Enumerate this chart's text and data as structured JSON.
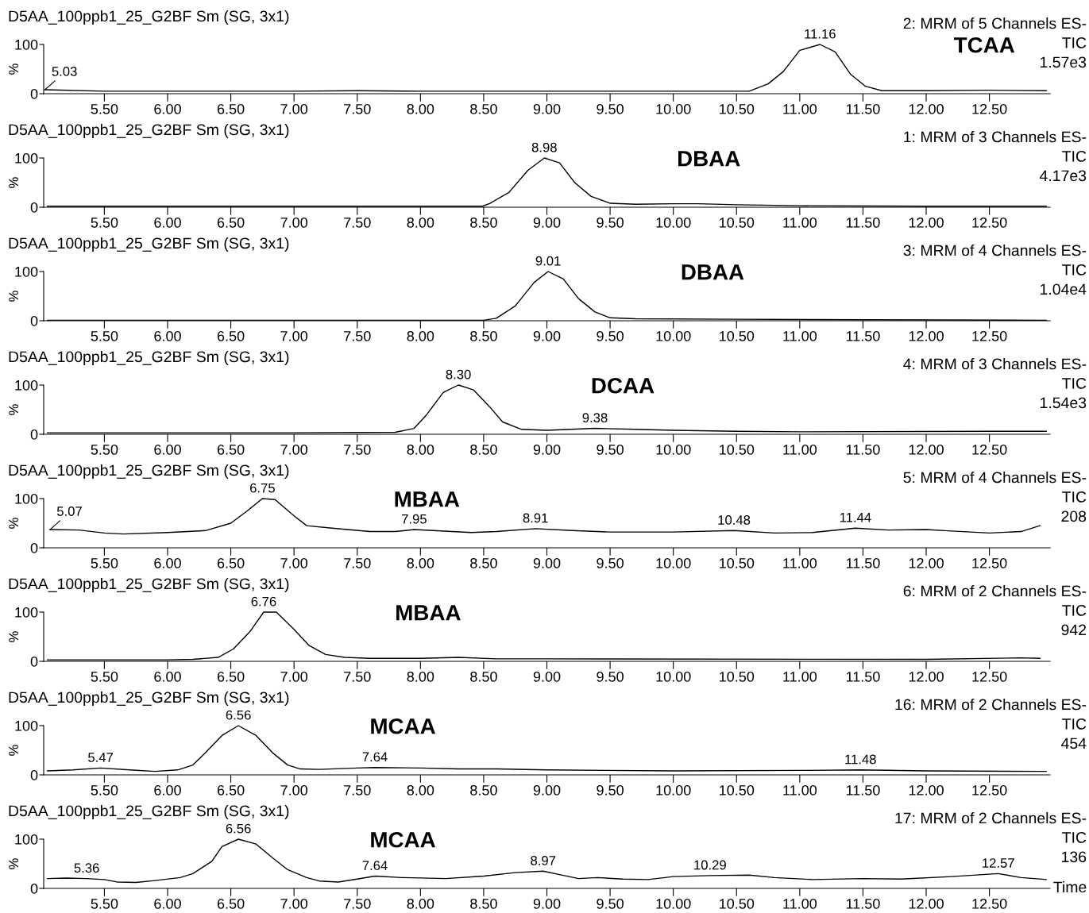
{
  "chart_data": [
    {
      "type": "line",
      "title": "D5AA_100ppb1_25_G2BF Sm (SG, 3x1)",
      "subtitle": "2: MRM of 5 Channels ES-\nTIC\n1.57e3",
      "ylabel": "%",
      "xlim": [
        5.02,
        12.98
      ],
      "ylim": [
        0,
        100
      ],
      "yticks": [
        0,
        100
      ],
      "xticks": [
        {
          "value": 5.5,
          "label": "5.50"
        },
        {
          "value": 6.0,
          "label": "6.00"
        },
        {
          "value": 6.5,
          "label": "6.50"
        },
        {
          "value": 7.0,
          "label": "7.00"
        },
        {
          "value": 7.5,
          "label": "7.50"
        },
        {
          "value": 8.0,
          "label": "8.00"
        },
        {
          "value": 8.5,
          "label": "8.50"
        },
        {
          "value": 9.0,
          "label": "9.00"
        },
        {
          "value": 9.5,
          "label": "9.50"
        },
        {
          "value": 10.0,
          "label": "10.00"
        },
        {
          "value": 10.5,
          "label": "10.50"
        },
        {
          "value": 11.0,
          "label": "11.00"
        },
        {
          "value": 11.5,
          "label": "11.50"
        },
        {
          "value": 12.0,
          "label": "12.00"
        },
        {
          "value": 12.5,
          "label": "12.50"
        }
      ],
      "annotations": [
        "TCAA",
        {
          "text": "11.16",
          "x": 11.16,
          "y": 100
        },
        {
          "text": "5.03",
          "x": 5.03,
          "y": 8
        }
      ],
      "series": [
        {
          "color": "#000000",
          "x": [
            5.03,
            5.5,
            6.0,
            7.0,
            7.5,
            8.0,
            9.0,
            10.0,
            10.6,
            10.75,
            10.87,
            11.0,
            11.16,
            11.28,
            11.4,
            11.52,
            11.65,
            12.0,
            12.5,
            12.95
          ],
          "values": [
            8,
            5,
            5,
            5,
            6,
            5,
            5,
            5,
            5,
            20,
            45,
            88,
            100,
            85,
            40,
            15,
            6,
            6,
            7,
            6
          ]
        }
      ]
    },
    {
      "type": "line",
      "title": "D5AA_100ppb1_25_G2BF Sm (SG, 3x1)",
      "subtitle": "1: MRM of 3 Channels ES-\nTIC\n4.17e3",
      "ylabel": "%",
      "xlim": [
        5.02,
        12.98
      ],
      "ylim": [
        0,
        100
      ],
      "yticks": [
        0,
        100
      ],
      "xticks": [
        {
          "value": 5.5,
          "label": "5.50"
        },
        {
          "value": 6.0,
          "label": "6.00"
        },
        {
          "value": 6.5,
          "label": "6.50"
        },
        {
          "value": 7.0,
          "label": "7.00"
        },
        {
          "value": 7.5,
          "label": "7.50"
        },
        {
          "value": 8.0,
          "label": "8.00"
        },
        {
          "value": 8.5,
          "label": "8.50"
        },
        {
          "value": 9.0,
          "label": "9.00"
        },
        {
          "value": 9.5,
          "label": "9.50"
        },
        {
          "value": 10.0,
          "label": "10.00"
        },
        {
          "value": 10.5,
          "label": "10.50"
        },
        {
          "value": 11.0,
          "label": "11.00"
        },
        {
          "value": 11.5,
          "label": "11.50"
        },
        {
          "value": 12.0,
          "label": "12.00"
        },
        {
          "value": 12.5,
          "label": "12.50"
        }
      ],
      "annotations": [
        "DBAA",
        {
          "text": "8.98",
          "x": 8.98,
          "y": 100
        }
      ],
      "series": [
        {
          "color": "#000000",
          "x": [
            5.05,
            6.0,
            7.0,
            8.0,
            8.49,
            8.55,
            8.7,
            8.85,
            8.98,
            9.1,
            9.22,
            9.35,
            9.5,
            9.7,
            10.0,
            10.2,
            10.5,
            11.0,
            12.0,
            12.95
          ],
          "values": [
            2,
            2,
            2,
            2,
            2,
            8,
            30,
            75,
            100,
            90,
            50,
            22,
            8,
            6,
            7,
            7,
            5,
            3,
            2,
            2
          ]
        }
      ]
    },
    {
      "type": "line",
      "title": "D5AA_100ppb1_25_G2BF Sm (SG, 3x1)",
      "subtitle": "3: MRM of 4 Channels ES-\nTIC\n1.04e4",
      "ylabel": "%",
      "xlim": [
        5.02,
        12.98
      ],
      "ylim": [
        0,
        100
      ],
      "yticks": [
        0,
        100
      ],
      "xticks": [
        {
          "value": 5.5,
          "label": "5.50"
        },
        {
          "value": 6.0,
          "label": "6.00"
        },
        {
          "value": 6.5,
          "label": "6.50"
        },
        {
          "value": 7.0,
          "label": "7.00"
        },
        {
          "value": 7.5,
          "label": "7.50"
        },
        {
          "value": 8.0,
          "label": "8.00"
        },
        {
          "value": 8.5,
          "label": "8.50"
        },
        {
          "value": 9.0,
          "label": "9.00"
        },
        {
          "value": 9.5,
          "label": "9.50"
        },
        {
          "value": 10.0,
          "label": "10.00"
        },
        {
          "value": 10.5,
          "label": "10.50"
        },
        {
          "value": 11.0,
          "label": "11.00"
        },
        {
          "value": 11.5,
          "label": "11.50"
        },
        {
          "value": 12.0,
          "label": "12.00"
        },
        {
          "value": 12.5,
          "label": "12.50"
        }
      ],
      "annotations": [
        "DBAA",
        {
          "text": "9.01",
          "x": 9.01,
          "y": 100
        }
      ],
      "series": [
        {
          "color": "#000000",
          "x": [
            5.05,
            6.0,
            7.0,
            8.0,
            8.5,
            8.6,
            8.75,
            8.9,
            9.01,
            9.13,
            9.25,
            9.38,
            9.5,
            9.7,
            10.5,
            11.5,
            12.95
          ],
          "values": [
            1,
            1,
            1,
            1,
            1,
            5,
            30,
            78,
            100,
            85,
            45,
            18,
            6,
            4,
            3,
            2,
            1
          ]
        }
      ]
    },
    {
      "type": "line",
      "title": "D5AA_100ppb1_25_G2BF Sm (SG, 3x1)",
      "subtitle": "4: MRM of 3 Channels ES-\nTIC\n1.54e3",
      "ylabel": "%",
      "xlim": [
        5.02,
        12.98
      ],
      "ylim": [
        0,
        100
      ],
      "yticks": [
        0,
        100
      ],
      "xticks": [
        {
          "value": 5.5,
          "label": "5.50"
        },
        {
          "value": 6.0,
          "label": "6.00"
        },
        {
          "value": 6.5,
          "label": "6.50"
        },
        {
          "value": 7.0,
          "label": "7.00"
        },
        {
          "value": 7.5,
          "label": "7.50"
        },
        {
          "value": 8.0,
          "label": "8.00"
        },
        {
          "value": 8.5,
          "label": "8.50"
        },
        {
          "value": 9.0,
          "label": "9.00"
        },
        {
          "value": 9.5,
          "label": "9.50"
        },
        {
          "value": 10.0,
          "label": "10.00"
        },
        {
          "value": 10.5,
          "label": "10.50"
        },
        {
          "value": 11.0,
          "label": "11.00"
        },
        {
          "value": 11.5,
          "label": "11.50"
        },
        {
          "value": 12.0,
          "label": "12.00"
        },
        {
          "value": 12.5,
          "label": "12.50"
        }
      ],
      "annotations": [
        "DCAA",
        {
          "text": "8.30",
          "x": 8.3,
          "y": 100
        },
        {
          "text": "9.38",
          "x": 9.38,
          "y": 12
        }
      ],
      "series": [
        {
          "color": "#000000",
          "x": [
            5.05,
            6.0,
            7.0,
            7.8,
            7.95,
            8.05,
            8.18,
            8.3,
            8.42,
            8.55,
            8.65,
            8.8,
            9.0,
            9.38,
            9.7,
            10.0,
            10.5,
            11.0,
            12.5,
            12.95
          ],
          "values": [
            3,
            3,
            3,
            4,
            12,
            40,
            85,
            100,
            90,
            55,
            25,
            10,
            8,
            12,
            10,
            8,
            6,
            5,
            6,
            6
          ]
        }
      ]
    },
    {
      "type": "line",
      "title": "D5AA_100ppb1_25_G2BF Sm (SG, 3x1)",
      "subtitle": "5: MRM of 4 Channels ES-\nTIC\n208",
      "ylabel": "%",
      "xlim": [
        5.02,
        12.98
      ],
      "ylim": [
        0,
        100
      ],
      "yticks": [
        0,
        100
      ],
      "xticks": [
        {
          "value": 5.5,
          "label": "5.50"
        },
        {
          "value": 6.0,
          "label": "6.00"
        },
        {
          "value": 6.5,
          "label": "6.50"
        },
        {
          "value": 7.0,
          "label": "7.00"
        },
        {
          "value": 7.5,
          "label": "7.50"
        },
        {
          "value": 8.0,
          "label": "8.00"
        },
        {
          "value": 8.5,
          "label": "8.50"
        },
        {
          "value": 9.0,
          "label": "9.00"
        },
        {
          "value": 9.5,
          "label": "9.50"
        },
        {
          "value": 10.0,
          "label": "10.00"
        },
        {
          "value": 10.5,
          "label": "10.50"
        },
        {
          "value": 11.0,
          "label": "11.00"
        },
        {
          "value": 11.5,
          "label": "11.50"
        },
        {
          "value": 12.0,
          "label": "12.00"
        },
        {
          "value": 12.5,
          "label": "12.50"
        }
      ],
      "annotations": [
        "MBAA",
        {
          "text": "6.75",
          "x": 6.75,
          "y": 100
        },
        {
          "text": "5.07",
          "x": 5.07,
          "y": 37
        },
        {
          "text": "7.95",
          "x": 7.95,
          "y": 37
        },
        {
          "text": "8.91",
          "x": 8.91,
          "y": 39
        },
        {
          "text": "10.48",
          "x": 10.48,
          "y": 35
        },
        {
          "text": "11.44",
          "x": 11.44,
          "y": 40
        }
      ],
      "series": [
        {
          "color": "#000000",
          "x": [
            5.07,
            5.3,
            5.5,
            5.65,
            6.0,
            6.3,
            6.5,
            6.63,
            6.75,
            6.85,
            7.0,
            7.1,
            7.3,
            7.6,
            7.8,
            7.95,
            8.1,
            8.4,
            8.6,
            8.91,
            9.2,
            9.5,
            10.0,
            10.48,
            10.8,
            11.1,
            11.44,
            11.7,
            12.0,
            12.2,
            12.5,
            12.75,
            12.9
          ],
          "values": [
            37,
            36,
            30,
            28,
            31,
            35,
            50,
            75,
            100,
            98,
            65,
            45,
            40,
            33,
            33,
            37,
            35,
            31,
            33,
            39,
            35,
            32,
            32,
            35,
            30,
            31,
            40,
            36,
            37,
            34,
            30,
            33,
            45
          ]
        }
      ]
    },
    {
      "type": "line",
      "title": "D5AA_100ppb1_25_G2BF Sm (SG, 3x1)",
      "subtitle": "6: MRM of 2 Channels ES-\nTIC\n942",
      "ylabel": "%",
      "xlim": [
        5.02,
        12.98
      ],
      "ylim": [
        0,
        100
      ],
      "yticks": [
        0,
        100
      ],
      "xticks": [
        {
          "value": 5.5,
          "label": "5.50"
        },
        {
          "value": 6.0,
          "label": "6.00"
        },
        {
          "value": 6.5,
          "label": "6.50"
        },
        {
          "value": 7.0,
          "label": "7.00"
        },
        {
          "value": 7.5,
          "label": "7.50"
        },
        {
          "value": 8.0,
          "label": "8.00"
        },
        {
          "value": 8.5,
          "label": "8.50"
        },
        {
          "value": 9.0,
          "label": "9.00"
        },
        {
          "value": 9.5,
          "label": "9.50"
        },
        {
          "value": 10.0,
          "label": "10.00"
        },
        {
          "value": 10.5,
          "label": "10.50"
        },
        {
          "value": 11.0,
          "label": "11.00"
        },
        {
          "value": 11.5,
          "label": "11.50"
        },
        {
          "value": 12.0,
          "label": "12.00"
        },
        {
          "value": 12.5,
          "label": "12.50"
        }
      ],
      "annotations": [
        "MBAA",
        {
          "text": "6.76",
          "x": 6.76,
          "y": 100
        }
      ],
      "series": [
        {
          "color": "#000000",
          "x": [
            5.05,
            6.0,
            6.2,
            6.4,
            6.52,
            6.65,
            6.76,
            6.86,
            7.0,
            7.12,
            7.25,
            7.4,
            7.6,
            8.0,
            8.3,
            8.6,
            9.0,
            12.0,
            12.75,
            12.9
          ],
          "values": [
            3,
            3,
            4,
            8,
            25,
            60,
            100,
            100,
            65,
            32,
            14,
            8,
            6,
            6,
            8,
            5,
            5,
            4,
            7,
            6
          ]
        }
      ]
    },
    {
      "type": "line",
      "title": "D5AA_100ppb1_25_G2BF Sm (SG, 3x1)",
      "subtitle": "16: MRM of 2 Channels ES-\nTIC\n454",
      "ylabel": "%",
      "xlim": [
        5.02,
        12.98
      ],
      "ylim": [
        0,
        100
      ],
      "yticks": [
        0,
        100
      ],
      "xticks": [
        {
          "value": 5.5,
          "label": "5.50"
        },
        {
          "value": 6.0,
          "label": "6.00"
        },
        {
          "value": 6.5,
          "label": "6.50"
        },
        {
          "value": 7.0,
          "label": "7.00"
        },
        {
          "value": 7.5,
          "label": "7.50"
        },
        {
          "value": 8.0,
          "label": "8.00"
        },
        {
          "value": 8.5,
          "label": "8.50"
        },
        {
          "value": 9.0,
          "label": "9.00"
        },
        {
          "value": 9.5,
          "label": "9.50"
        },
        {
          "value": 10.0,
          "label": "10.00"
        },
        {
          "value": 10.5,
          "label": "10.50"
        },
        {
          "value": 11.0,
          "label": "11.00"
        },
        {
          "value": 11.5,
          "label": "11.50"
        },
        {
          "value": 12.0,
          "label": "12.00"
        },
        {
          "value": 12.5,
          "label": "12.50"
        }
      ],
      "annotations": [
        "MCAA",
        {
          "text": "6.56",
          "x": 6.56,
          "y": 100
        },
        {
          "text": "5.47",
          "x": 5.47,
          "y": 14
        },
        {
          "text": "7.64",
          "x": 7.64,
          "y": 15
        },
        {
          "text": "11.48",
          "x": 11.48,
          "y": 10
        }
      ],
      "series": [
        {
          "color": "#000000",
          "x": [
            5.05,
            5.25,
            5.47,
            5.7,
            5.9,
            6.08,
            6.2,
            6.3,
            6.43,
            6.56,
            6.7,
            6.83,
            6.95,
            7.05,
            7.2,
            7.5,
            7.64,
            8.0,
            8.3,
            8.6,
            9.0,
            10.0,
            11.0,
            11.48,
            12.0,
            12.95
          ],
          "values": [
            8,
            10,
            14,
            10,
            7,
            10,
            20,
            45,
            80,
            100,
            80,
            45,
            20,
            12,
            11,
            14,
            15,
            14,
            12,
            12,
            10,
            8,
            9,
            10,
            8,
            7
          ]
        }
      ]
    },
    {
      "type": "line",
      "title": "D5AA_100ppb1_25_G2BF Sm (SG, 3x1)",
      "subtitle": "17: MRM of 2 Channels ES-\nTIC\n136",
      "ylabel": "%",
      "xlabel": "Time",
      "xlim": [
        5.02,
        12.98
      ],
      "ylim": [
        0,
        100
      ],
      "yticks": [
        0,
        100
      ],
      "xticks": [
        {
          "value": 5.5,
          "label": "5.50"
        },
        {
          "value": 6.0,
          "label": "6.00"
        },
        {
          "value": 6.5,
          "label": "6.50"
        },
        {
          "value": 7.0,
          "label": "7.00"
        },
        {
          "value": 7.5,
          "label": "7.50"
        },
        {
          "value": 8.0,
          "label": "8.00"
        },
        {
          "value": 8.5,
          "label": "8.50"
        },
        {
          "value": 9.0,
          "label": "9.00"
        },
        {
          "value": 9.5,
          "label": "9.50"
        },
        {
          "value": 10.0,
          "label": "10.00"
        },
        {
          "value": 10.5,
          "label": "10.50"
        },
        {
          "value": 11.0,
          "label": "11.00"
        },
        {
          "value": 11.5,
          "label": "11.50"
        },
        {
          "value": 12.0,
          "label": "12.00"
        },
        {
          "value": 12.5,
          "label": "12.50"
        }
      ],
      "annotations": [
        "MCAA",
        {
          "text": "6.56",
          "x": 6.56,
          "y": 100
        },
        {
          "text": "5.36",
          "x": 5.36,
          "y": 20
        },
        {
          "text": "7.64",
          "x": 7.64,
          "y": 25
        },
        {
          "text": "8.97",
          "x": 8.97,
          "y": 35
        },
        {
          "text": "10.29",
          "x": 10.29,
          "y": 26
        },
        {
          "text": "12.57",
          "x": 12.57,
          "y": 30
        }
      ],
      "series": [
        {
          "color": "#000000",
          "x": [
            5.05,
            5.2,
            5.36,
            5.5,
            5.6,
            5.75,
            5.9,
            6.1,
            6.2,
            6.35,
            6.43,
            6.56,
            6.7,
            6.83,
            6.95,
            7.1,
            7.2,
            7.35,
            7.5,
            7.64,
            7.85,
            8.2,
            8.5,
            8.75,
            8.97,
            9.1,
            9.25,
            9.4,
            9.6,
            9.8,
            10.0,
            10.29,
            10.6,
            10.8,
            11.1,
            11.5,
            11.8,
            12.2,
            12.57,
            12.75,
            12.95
          ],
          "values": [
            20,
            21,
            20,
            18,
            13,
            12,
            16,
            22,
            30,
            55,
            85,
            100,
            90,
            62,
            38,
            22,
            15,
            13,
            19,
            25,
            22,
            20,
            25,
            32,
            35,
            28,
            20,
            22,
            19,
            18,
            24,
            26,
            27,
            22,
            18,
            20,
            19,
            24,
            30,
            22,
            18
          ]
        }
      ]
    }
  ]
}
